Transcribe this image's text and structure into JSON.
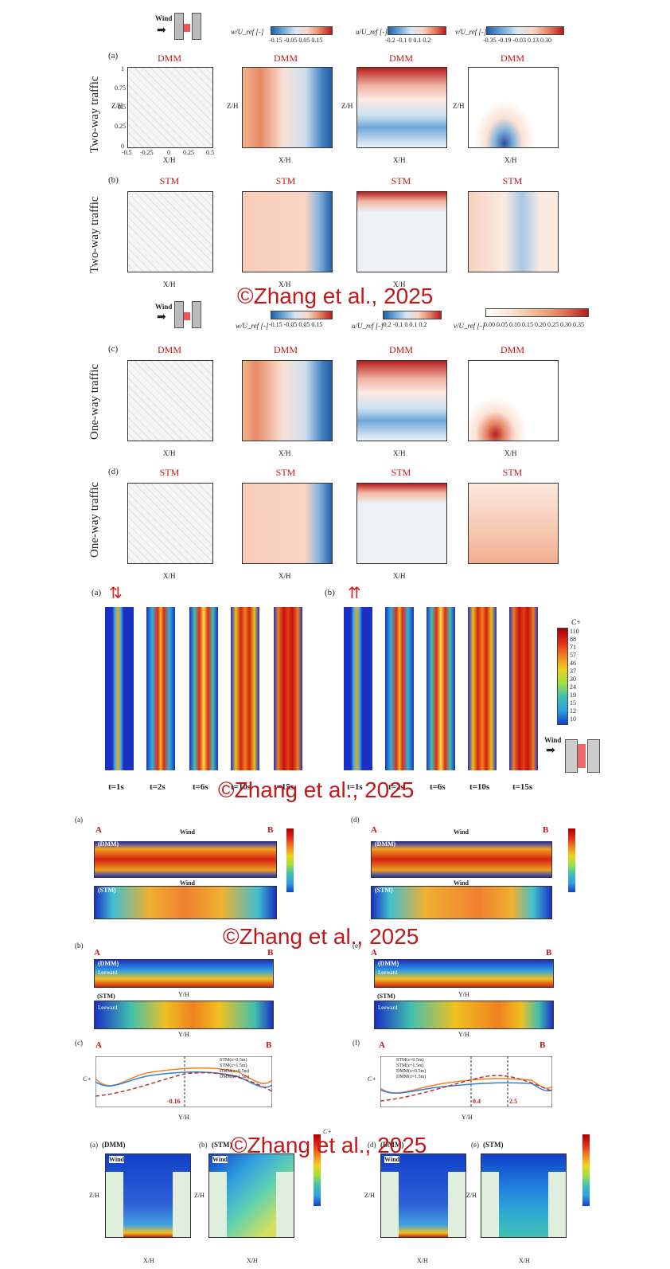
{
  "fig1": {
    "wind_label": "Wind",
    "colorbar_w": {
      "label": "w/U_ref [-]",
      "ticks": "-0.15  -0.05  0.05  0.15"
    },
    "colorbar_u": {
      "label": "u/U_ref [-]",
      "ticks": "-0.2 -0.1  0  0.1  0.2"
    },
    "colorbar_v": {
      "label": "v/U_ref [-]",
      "ticks": "-0.35 -0.19 -0.03  0.13  0.30"
    },
    "colorbar_v2": {
      "label": "v/U_ref [-]",
      "ticks": "0.00 0.05 0.10 0.15 0.20 0.25 0.30 0.35"
    },
    "rows": [
      {
        "tag": "(a)",
        "side": "Two-way traffic",
        "model": "DMM"
      },
      {
        "tag": "(b)",
        "side": "Two-way traffic",
        "model": "STM"
      },
      {
        "tag": "(c)",
        "side": "One-way traffic",
        "model": "DMM"
      },
      {
        "tag": "(d)",
        "side": "One-way traffic",
        "model": "STM"
      }
    ],
    "ylabel": "Z/H",
    "xlabel": "X/H",
    "xticks": [
      "-0.5",
      "-0.25",
      "0",
      "0.25",
      "0.5"
    ],
    "yticks": [
      "1",
      "0.75",
      "0.5",
      "0.25",
      "0"
    ]
  },
  "fig2": {
    "tag_a": "(a)",
    "tag_b": "(b)",
    "times": [
      "t=1s",
      "t=2s",
      "t=6s",
      "t=10s",
      "t=15s"
    ],
    "cbar_title": "C+",
    "cbar_ticks": [
      "110",
      "88",
      "71",
      "57",
      "46",
      "37",
      "30",
      "24",
      "19",
      "15",
      "12",
      "10"
    ],
    "wind_label": "Wind"
  },
  "fig3": {
    "tags": [
      "(a)",
      "(d)",
      "(b)",
      "(e)",
      "(c)",
      "(f)"
    ],
    "pointA": "A",
    "pointB": "B",
    "wind_label": "Wind",
    "dmm": "(DMM)",
    "stm": "(STM)",
    "leeward": "Leeward",
    "ylabel_c": "C+",
    "xlabel_y": "Y/H",
    "legend": [
      "STM(z=0.5m)",
      "STM(z=1.5m)",
      "DMM(z=0.5m)",
      "DMM(z=1.5m)"
    ],
    "marker_c": "-0.16",
    "marker_f1": "0.4",
    "marker_f2": "2.5"
  },
  "fig4": {
    "tags": [
      "(a)",
      "(b)",
      "(d)",
      "(e)"
    ],
    "models": [
      "(DMM)",
      "(STM)",
      "(DMM)",
      "(STM)"
    ],
    "wind_label": "Wind",
    "ylabel": "Z/H",
    "xlabel": "X/H",
    "cbar_title": "C+"
  },
  "watermarks": [
    "©Zhang et al., 2025",
    "©Zhang et al., 2025",
    "©Zhang et al., 2025",
    "©Zhang et al., 2025"
  ]
}
